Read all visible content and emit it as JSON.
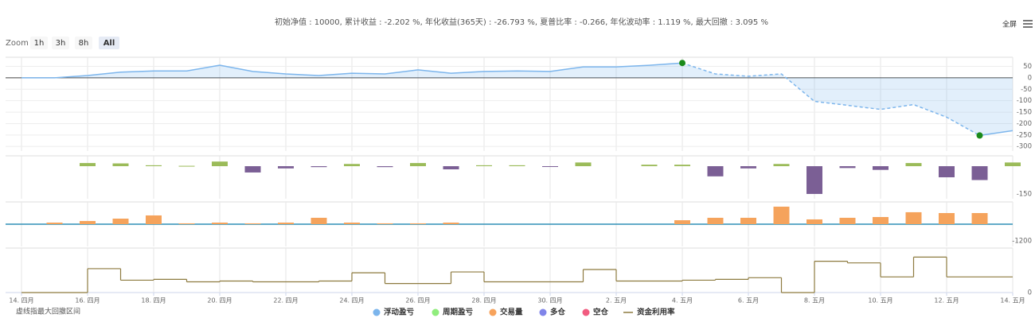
{
  "header": {
    "stats": "初始净值 : 10000, 累计收益 : -2.202 %, 年化收益(365天) : -26.793 %, 夏普比率 : -0.266, 年化波动率 : 1.119 %, 最大回撤 : 3.095 %",
    "fullscreen": "全屏"
  },
  "zoom": {
    "label": "Zoom",
    "buttons": [
      "1h",
      "3h",
      "8h",
      "All"
    ],
    "selected": 3
  },
  "chart_data": {
    "type": "combo",
    "note": "虚线指最大回撤区间",
    "categories": [
      "14. 四月",
      null,
      "16. 四月",
      null,
      "18. 四月",
      null,
      "20. 四月",
      null,
      "22. 四月",
      null,
      "24. 四月",
      null,
      "26. 四月",
      null,
      "28. 四月",
      null,
      "30. 四月",
      null,
      "2. 五月",
      null,
      "4. 五月",
      null,
      "6. 五月",
      null,
      "8. 五月",
      null,
      "10. 五月",
      null,
      "12. 五月",
      null,
      "14. 五月"
    ],
    "grid": true,
    "series": [
      {
        "name": "浮动盈亏",
        "type": "area",
        "color": "#7cb5ec",
        "values": [
          0,
          0,
          10,
          25,
          30,
          30,
          55,
          28,
          17,
          10,
          20,
          17,
          35,
          20,
          28,
          30,
          28,
          48,
          48,
          55,
          65,
          17,
          7,
          17,
          -103,
          -120,
          -138,
          -117,
          -172,
          -252,
          -231
        ],
        "dashed_range": [
          20,
          29
        ],
        "marker_color": "#1a8a1a",
        "ylim": [
          -320,
          90
        ],
        "yticks": [
          50,
          0,
          -50,
          -100,
          -150,
          -200,
          -250,
          -300
        ]
      },
      {
        "name": "周期盈亏",
        "type": "bar",
        "color": "#90ed7d",
        "bar_colors": [
          "#9bbb59",
          "#7b5f95"
        ],
        "values": [
          null,
          null,
          17,
          15,
          5,
          2,
          25,
          -34,
          -12,
          -5,
          12,
          -5,
          17,
          -17,
          5,
          5,
          -3,
          20,
          null,
          8,
          8,
          -55,
          -12,
          12,
          -150,
          -10,
          -20,
          17,
          -60,
          -75,
          20
        ],
        "ylim": [
          -176,
          56
        ],
        "yticks": [
          -150
        ]
      },
      {
        "name": "交易量",
        "type": "bar",
        "color": "#f7a35c",
        "bar_colors": [
          "#f5a35c",
          "#f5a35c"
        ],
        "baseline_color": "#2f8fb5",
        "values": [
          null,
          115,
          230,
          400,
          630,
          60,
          115,
          60,
          115,
          460,
          115,
          60,
          60,
          115,
          null,
          null,
          null,
          null,
          null,
          null,
          285,
          460,
          460,
          1260,
          345,
          460,
          515,
          860,
          800,
          800,
          null
        ],
        "ylim": [
          -1600,
          1600
        ],
        "yticks": [
          -1200
        ]
      },
      {
        "name": "多仓",
        "type": "legend",
        "color": "#8085e9"
      },
      {
        "name": "空仓",
        "type": "legend",
        "color": "#f15c80"
      },
      {
        "name": "资金利用率",
        "type": "step",
        "color": "#8d7a3f",
        "values": [
          0,
          0,
          29,
          15,
          16,
          13,
          14,
          13,
          13,
          14,
          24,
          11,
          11,
          25,
          13,
          13,
          13,
          28,
          14,
          14,
          15,
          16,
          18,
          0,
          38,
          36,
          19,
          43,
          19,
          19,
          19
        ],
        "ylim": [
          0,
          54
        ],
        "yticks": [
          0
        ]
      }
    ]
  }
}
